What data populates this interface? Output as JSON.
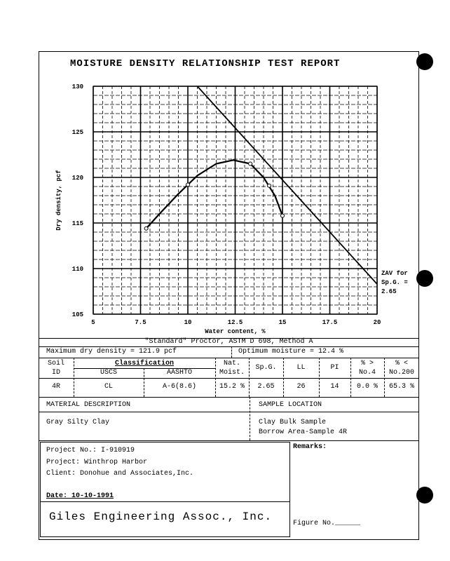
{
  "title": "MOISTURE DENSITY RELATIONSHIP TEST REPORT",
  "chart_data": {
    "type": "line",
    "title": "MOISTURE DENSITY RELATIONSHIP TEST REPORT",
    "xlabel": "Water content, %",
    "ylabel": "Dry density, pcf",
    "xlim": [
      5,
      20
    ],
    "ylim": [
      105,
      130
    ],
    "x_ticks": [
      "5",
      "7.5",
      "10",
      "12.5",
      "15",
      "17.5",
      "20"
    ],
    "y_ticks": [
      "105",
      "110",
      "115",
      "120",
      "125",
      "130"
    ],
    "grid": true,
    "series": [
      {
        "name": "Compaction curve",
        "x": [
          7.8,
          8.5,
          9.5,
          10.5,
          11.5,
          12.4,
          13.3,
          14.0,
          14.6,
          15.0
        ],
        "y": [
          114.4,
          116.0,
          118.2,
          120.2,
          121.5,
          121.9,
          121.5,
          120.0,
          118.0,
          115.8
        ]
      },
      {
        "name": "Test points",
        "x": [
          7.8,
          10.0,
          13.3,
          14.3,
          15.0
        ],
        "y": [
          114.4,
          119.2,
          121.5,
          119.1,
          115.8
        ]
      },
      {
        "name": "ZAV for Sp.G. = 2.65",
        "x": [
          10.5,
          20.0
        ],
        "y": [
          130.0,
          108.3
        ]
      }
    ],
    "annotations": [
      "ZAV for",
      "Sp.G. =",
      "2.65"
    ]
  },
  "test": {
    "method": "\"Standard\" Proctor,  ASTM D 698, Method A",
    "max_dry_density": "Maximum dry density = 121.9 pcf",
    "optimum_moisture": "Optimum moisture = 12.4 %"
  },
  "table": {
    "headers": {
      "soil": "Soil",
      "id": "ID",
      "classification": "Classification",
      "uscs": "USCS",
      "aashto": "AASHTO",
      "nat": "Nat.",
      "moist": "Moist.",
      "spg": "Sp.G.",
      "ll": "LL",
      "pi": "PI",
      "no4a": "% >",
      "no4b": "No.4",
      "no200a": "% <",
      "no200b": "No.200"
    },
    "row": {
      "id": "4R",
      "uscs": "CL",
      "aashto": "A-6(8.6)",
      "moist": "15.2 %",
      "spg": "2.65",
      "ll": "26",
      "pi": "14",
      "no4": "0.0 %",
      "no200": "65.3 %"
    }
  },
  "material": {
    "header": "MATERIAL DESCRIPTION",
    "value": "Gray Silty Clay"
  },
  "location": {
    "header": "SAMPLE LOCATION",
    "line1": "Clay Bulk Sample",
    "line2": "Borrow Area-Sample 4R"
  },
  "project": {
    "number": "Project No.: I-910919",
    "name": "Project: Winthrop Harbor",
    "client": "Client: Donohue and Associates,Inc.",
    "date": "Date: 10-10-1991",
    "company": "Giles Engineering Assoc., Inc."
  },
  "remarks": "Remarks:",
  "figure": "Figure No.______"
}
